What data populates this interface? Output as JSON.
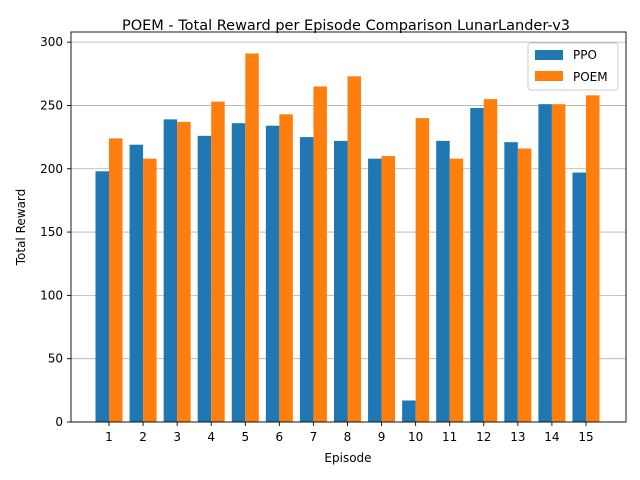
{
  "chart_data": {
    "type": "bar",
    "title": "POEM - Total Reward per Episode Comparison LunarLander-v3",
    "xlabel": "Episode",
    "ylabel": "Total Reward",
    "categories": [
      "1",
      "2",
      "3",
      "4",
      "5",
      "6",
      "7",
      "8",
      "9",
      "10",
      "11",
      "12",
      "13",
      "14",
      "15"
    ],
    "series": [
      {
        "name": "PPO",
        "color": "#1f77b4",
        "values": [
          198,
          219,
          239,
          226,
          236,
          234,
          225,
          222,
          208,
          17,
          222,
          248,
          221,
          251,
          197
        ]
      },
      {
        "name": "POEM",
        "color": "#ff7f0e",
        "values": [
          224,
          208,
          237,
          253,
          291,
          243,
          265,
          273,
          210,
          240,
          208,
          255,
          216,
          251,
          258
        ]
      }
    ],
    "ylim": [
      0,
      308
    ],
    "yticks": [
      0,
      50,
      100,
      150,
      200,
      250,
      300
    ],
    "grid": "y",
    "legend_position": "top-right"
  }
}
